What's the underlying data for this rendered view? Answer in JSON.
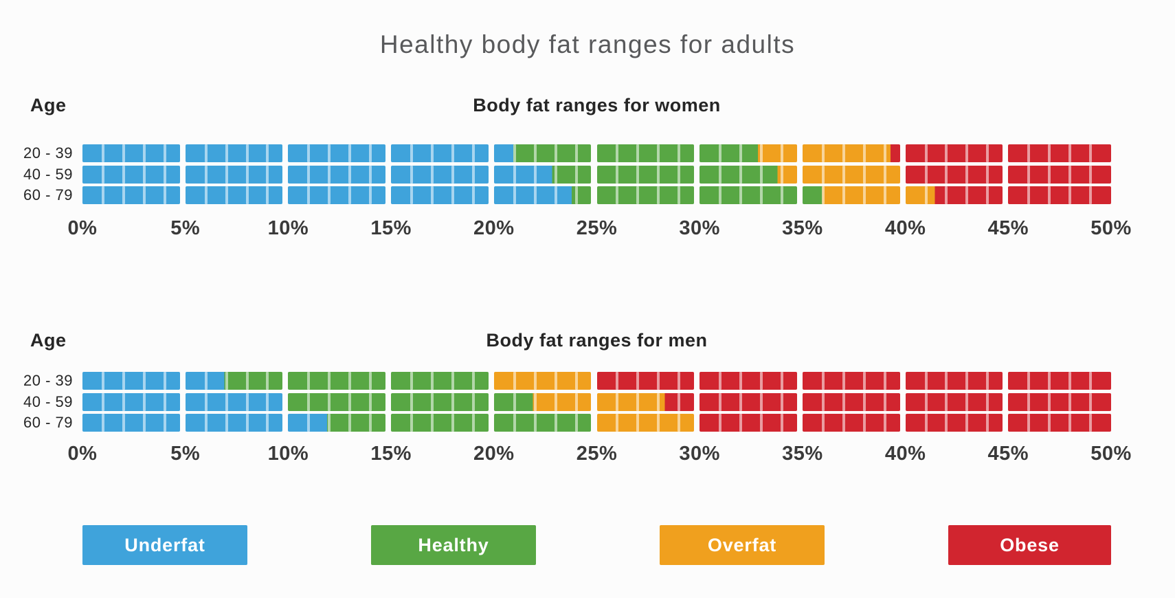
{
  "title": "Healthy body fat ranges for adults",
  "colors": {
    "underfat": "#3FA3DB",
    "healthy": "#58A744",
    "overfat": "#F0A01E",
    "obese": "#D1252F",
    "tick": "rgba(255,255,255,0.55)"
  },
  "legend": [
    {
      "key": "underfat",
      "label": "Underfat"
    },
    {
      "key": "healthy",
      "label": "Healthy"
    },
    {
      "key": "overfat",
      "label": "Overfat"
    },
    {
      "key": "obese",
      "label": "Obese"
    }
  ],
  "axis": {
    "min": 0,
    "max": 50,
    "step": 5,
    "unit": "%",
    "tick_labels": [
      "0%",
      "5%",
      "10%",
      "15%",
      "20%",
      "25%",
      "30%",
      "35%",
      "40%",
      "45%",
      "50%"
    ]
  },
  "chart_data": [
    {
      "type": "bar",
      "title": "Body fat ranges for women",
      "age_label": "Age",
      "categories": [
        "20 - 39",
        "40 - 59",
        "60 - 79"
      ],
      "xlim": [
        0,
        50
      ],
      "block_step_pct": 5,
      "minor_tick_step_pct": 1,
      "rows": [
        {
          "age": "20 - 39",
          "segments": [
            {
              "category": "Underfat",
              "from": 0,
              "to": 21
            },
            {
              "category": "Healthy",
              "from": 21,
              "to": 33
            },
            {
              "category": "Overfat",
              "from": 33,
              "to": 39.5
            },
            {
              "category": "Obese",
              "from": 39.5,
              "to": 50
            }
          ]
        },
        {
          "age": "40 - 59",
          "segments": [
            {
              "category": "Underfat",
              "from": 0,
              "to": 23
            },
            {
              "category": "Healthy",
              "from": 23,
              "to": 34
            },
            {
              "category": "Overfat",
              "from": 34,
              "to": 40
            },
            {
              "category": "Obese",
              "from": 40,
              "to": 50
            }
          ]
        },
        {
          "age": "60 - 79",
          "segments": [
            {
              "category": "Underfat",
              "from": 0,
              "to": 24
            },
            {
              "category": "Healthy",
              "from": 24,
              "to": 36
            },
            {
              "category": "Overfat",
              "from": 36,
              "to": 41.5
            },
            {
              "category": "Obese",
              "from": 41.5,
              "to": 50
            }
          ]
        }
      ]
    },
    {
      "type": "bar",
      "title": "Body fat ranges for men",
      "age_label": "Age",
      "categories": [
        "20 - 39",
        "40 - 59",
        "60 - 79"
      ],
      "xlim": [
        0,
        50
      ],
      "block_step_pct": 5,
      "minor_tick_step_pct": 1,
      "rows": [
        {
          "age": "20 - 39",
          "segments": [
            {
              "category": "Underfat",
              "from": 0,
              "to": 7
            },
            {
              "category": "Healthy",
              "from": 7,
              "to": 20
            },
            {
              "category": "Overfat",
              "from": 20,
              "to": 25
            },
            {
              "category": "Obese",
              "from": 25,
              "to": 50
            }
          ]
        },
        {
          "age": "40 - 59",
          "segments": [
            {
              "category": "Underfat",
              "from": 0,
              "to": 10
            },
            {
              "category": "Healthy",
              "from": 10,
              "to": 22
            },
            {
              "category": "Overfat",
              "from": 22,
              "to": 28.5
            },
            {
              "category": "Obese",
              "from": 28.5,
              "to": 50
            }
          ]
        },
        {
          "age": "60 - 79",
          "segments": [
            {
              "category": "Underfat",
              "from": 0,
              "to": 12
            },
            {
              "category": "Healthy",
              "from": 12,
              "to": 25
            },
            {
              "category": "Overfat",
              "from": 25,
              "to": 30
            },
            {
              "category": "Obese",
              "from": 30,
              "to": 50
            }
          ]
        }
      ]
    }
  ]
}
